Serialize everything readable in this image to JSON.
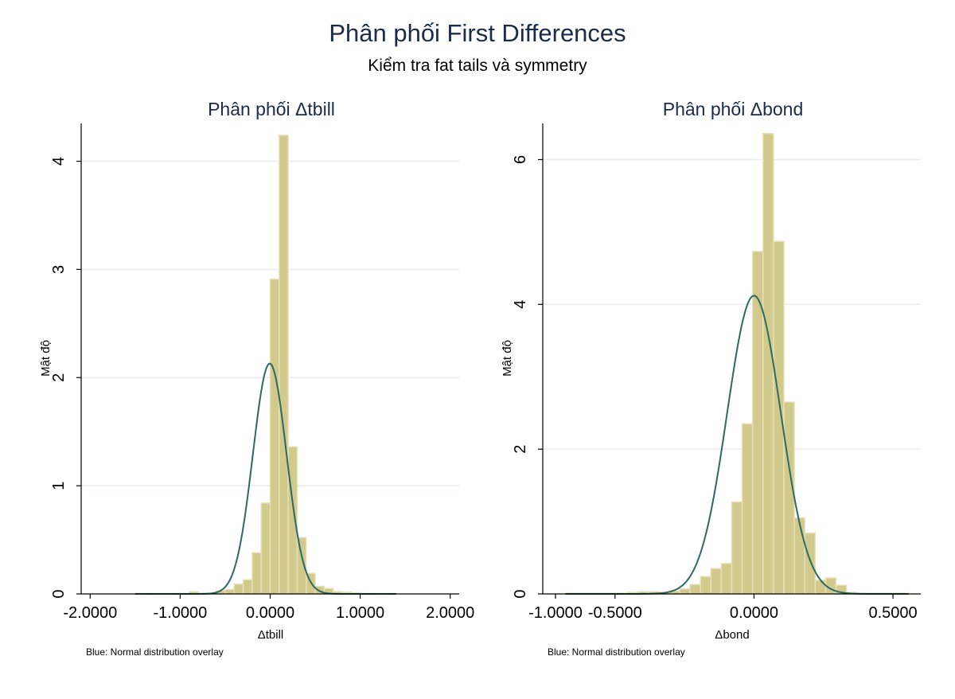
{
  "figure": {
    "title": "Phân phối First Differences",
    "subtitle": "Kiểm tra fat tails và symmetry"
  },
  "colors": {
    "bar_fill": "#d2c98d",
    "bar_edge": "#e6e0b6",
    "normal_curve": "#2c6a62",
    "title": "#1a2b4c",
    "grid": "#e8ecef"
  },
  "chart_data": [
    {
      "type": "bar",
      "title": "Phân phối Δtbill",
      "xlabel": "Δtbill",
      "ylabel": "Mật độ",
      "note": "Blue: Normal distribution overlay",
      "xlim": [
        -2.1,
        2.1
      ],
      "ylim": [
        0,
        4.35
      ],
      "xticks": [
        -2,
        -1,
        0,
        1,
        2
      ],
      "xtick_labels": [
        "-2.0000",
        "-1.0000",
        "0.0000",
        "1.0000",
        "2.0000"
      ],
      "yticks": [
        0,
        1,
        2,
        3,
        4
      ],
      "ytick_labels": [
        "0",
        "1",
        "2",
        "3",
        "4"
      ],
      "grid": true,
      "bin_width": 0.1,
      "bins": [
        {
          "x0": -1.5,
          "y": 0.005
        },
        {
          "x0": -1.4,
          "y": 0.005
        },
        {
          "x0": -1.3,
          "y": 0.005
        },
        {
          "x0": -1.2,
          "y": 0.005
        },
        {
          "x0": -1.1,
          "y": 0.005
        },
        {
          "x0": -1.0,
          "y": 0.005
        },
        {
          "x0": -0.9,
          "y": 0.02
        },
        {
          "x0": -0.8,
          "y": 0.005
        },
        {
          "x0": -0.7,
          "y": 0.005
        },
        {
          "x0": -0.6,
          "y": 0.03
        },
        {
          "x0": -0.5,
          "y": 0.04
        },
        {
          "x0": -0.4,
          "y": 0.09
        },
        {
          "x0": -0.3,
          "y": 0.13
        },
        {
          "x0": -0.2,
          "y": 0.38
        },
        {
          "x0": -0.1,
          "y": 0.84
        },
        {
          "x0": 0.0,
          "y": 2.91
        },
        {
          "x0": 0.1,
          "y": 4.24
        },
        {
          "x0": 0.2,
          "y": 1.36
        },
        {
          "x0": 0.3,
          "y": 0.52
        },
        {
          "x0": 0.4,
          "y": 0.19
        },
        {
          "x0": 0.5,
          "y": 0.07
        },
        {
          "x0": 0.6,
          "y": 0.05
        },
        {
          "x0": 0.7,
          "y": 0.02
        },
        {
          "x0": 0.8,
          "y": 0.015
        },
        {
          "x0": 0.9,
          "y": 0.01
        },
        {
          "x0": 1.0,
          "y": 0.005
        },
        {
          "x0": 1.1,
          "y": 0.005
        },
        {
          "x0": 1.2,
          "y": 0.005
        },
        {
          "x0": 1.3,
          "y": 0.005
        }
      ],
      "normal": {
        "mean": -0.005,
        "sd": 0.187,
        "peak": 2.13
      }
    },
    {
      "type": "bar",
      "title": "Phân phối Δbond",
      "xlabel": "Δbond",
      "ylabel": "Mật độ",
      "note": "Blue: Normal distribution overlay",
      "xlim": [
        -0.76,
        0.6
      ],
      "ylim": [
        0,
        6.5
      ],
      "xticks": [
        -0.5,
        0,
        0.5
      ],
      "xtick_labels": [
        "-0.5000",
        "0.0000",
        "0.5000"
      ],
      "extra_xticks": [
        -1.0
      ],
      "extra_xtick_labels": [
        "-1.0000"
      ],
      "yticks": [
        0,
        2,
        4,
        6
      ],
      "ytick_labels": [
        "0",
        "2",
        "4",
        "6"
      ],
      "grid": true,
      "bin_width": 0.0375,
      "bins": [
        {
          "x0": -0.68,
          "y": 0.01
        },
        {
          "x0": -0.6425,
          "y": 0.01
        },
        {
          "x0": -0.605,
          "y": 0.01
        },
        {
          "x0": -0.5675,
          "y": 0.01
        },
        {
          "x0": -0.53,
          "y": 0.01
        },
        {
          "x0": -0.4925,
          "y": 0.01
        },
        {
          "x0": -0.455,
          "y": 0.02
        },
        {
          "x0": -0.4175,
          "y": 0.03
        },
        {
          "x0": -0.38,
          "y": 0.03
        },
        {
          "x0": -0.3425,
          "y": 0.02
        },
        {
          "x0": -0.305,
          "y": 0.04
        },
        {
          "x0": -0.2675,
          "y": 0.07
        },
        {
          "x0": -0.23,
          "y": 0.13
        },
        {
          "x0": -0.1925,
          "y": 0.24
        },
        {
          "x0": -0.155,
          "y": 0.35
        },
        {
          "x0": -0.1175,
          "y": 0.42
        },
        {
          "x0": -0.08,
          "y": 1.27
        },
        {
          "x0": -0.0425,
          "y": 2.35
        },
        {
          "x0": -0.005,
          "y": 4.73
        },
        {
          "x0": 0.0325,
          "y": 6.36
        },
        {
          "x0": 0.07,
          "y": 4.87
        },
        {
          "x0": 0.1075,
          "y": 2.65
        },
        {
          "x0": 0.145,
          "y": 1.05
        },
        {
          "x0": 0.1825,
          "y": 0.84
        },
        {
          "x0": 0.22,
          "y": 0.19
        },
        {
          "x0": 0.2575,
          "y": 0.22
        },
        {
          "x0": 0.295,
          "y": 0.12
        },
        {
          "x0": 0.3325,
          "y": 0.02
        },
        {
          "x0": 0.37,
          "y": 0.01
        },
        {
          "x0": 0.4075,
          "y": 0.01
        },
        {
          "x0": 0.445,
          "y": 0.01
        },
        {
          "x0": 0.4825,
          "y": 0.01
        },
        {
          "x0": 0.52,
          "y": 0.01
        }
      ],
      "normal": {
        "mean": 0.0,
        "sd": 0.0966,
        "peak": 4.12
      }
    }
  ]
}
